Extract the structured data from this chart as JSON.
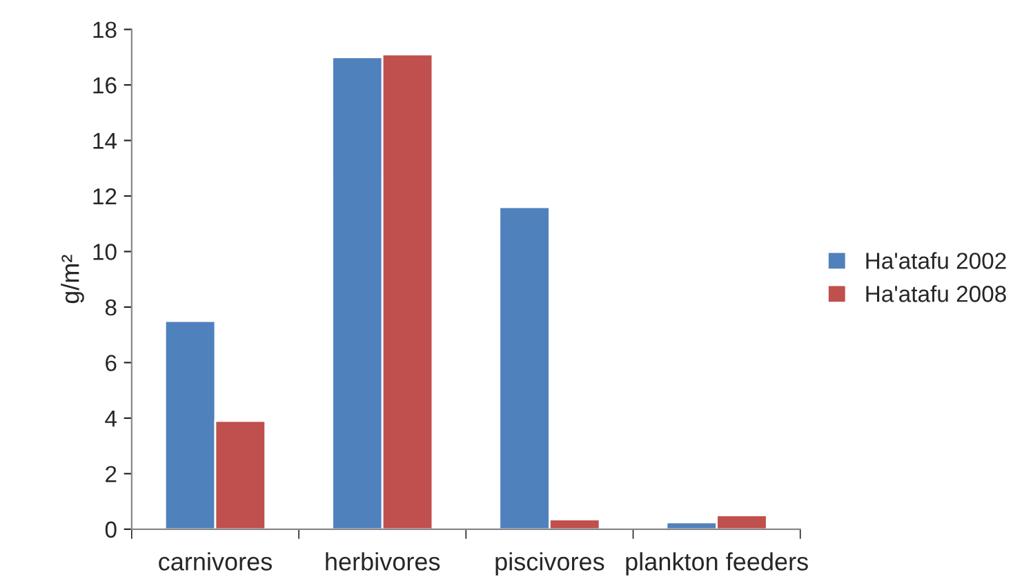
{
  "chart_data": {
    "type": "bar",
    "ylabel": "g/m²",
    "categories": [
      "carnivores",
      "herbivores",
      "piscivores",
      "plankton feeders"
    ],
    "series": [
      {
        "name": "Ha'atafu 2002",
        "color": "#4f81bd",
        "values": [
          7.5,
          17.0,
          11.6,
          0.25
        ]
      },
      {
        "name": "Ha'atafu 2008",
        "color": "#c0504d",
        "values": [
          3.9,
          17.1,
          0.35,
          0.5
        ]
      }
    ],
    "ylim": [
      0,
      18
    ],
    "yticks": [
      0,
      2,
      4,
      6,
      8,
      10,
      12,
      14,
      16,
      18
    ],
    "grid": false,
    "legend": "right"
  }
}
